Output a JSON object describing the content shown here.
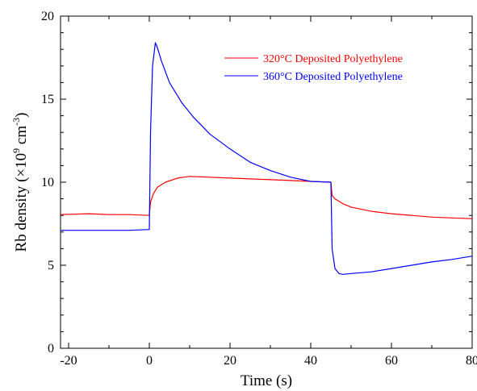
{
  "chart_data": {
    "type": "line",
    "title": "",
    "xlabel": "Time (s)",
    "ylabel": {
      "prefix": "Rb density (×10",
      "exp1": "9",
      "mid": " cm",
      "exp2": "-3",
      "suffix": ")"
    },
    "xlim": [
      -22,
      80
    ],
    "ylim": [
      0,
      20
    ],
    "xticks": [
      -20,
      0,
      20,
      40,
      60,
      80
    ],
    "xtick_labels": [
      "-20",
      "0",
      "20",
      "40",
      "60",
      "80"
    ],
    "yticks": [
      0,
      5,
      10,
      15,
      20
    ],
    "ytick_labels": [
      "0",
      "5",
      "10",
      "15",
      "20"
    ],
    "grid": false,
    "legend_position": "top-right",
    "series": [
      {
        "name": "320°C Deposited Polyethylene",
        "color": "#ff0000",
        "x": [
          -22,
          -15,
          -10,
          -5,
          0,
          0.3,
          1,
          2,
          4,
          7,
          10,
          15,
          20,
          25,
          30,
          35,
          40,
          45,
          45.3,
          46,
          48,
          50,
          55,
          60,
          65,
          70,
          75,
          80
        ],
        "y": [
          8.05,
          8.1,
          8.05,
          8.05,
          8.0,
          8.8,
          9.3,
          9.7,
          10.0,
          10.25,
          10.35,
          10.3,
          10.25,
          10.2,
          10.15,
          10.1,
          10.05,
          10.0,
          9.2,
          9.0,
          8.7,
          8.5,
          8.25,
          8.1,
          8.0,
          7.9,
          7.85,
          7.8
        ]
      },
      {
        "name": "360°C Deposited Polyethylene",
        "color": "#0000ff",
        "x": [
          -22,
          -15,
          -10,
          -5,
          0,
          0.3,
          0.8,
          1.5,
          2,
          3,
          5,
          8,
          11,
          15,
          20,
          25,
          30,
          35,
          40,
          45,
          45.3,
          46,
          47,
          48,
          50,
          55,
          60,
          65,
          70,
          75,
          80
        ],
        "y": [
          7.1,
          7.1,
          7.1,
          7.1,
          7.15,
          13.0,
          17.0,
          18.4,
          18.1,
          17.3,
          16.0,
          14.8,
          13.9,
          12.9,
          12.0,
          11.2,
          10.7,
          10.3,
          10.05,
          10.0,
          6.0,
          4.8,
          4.5,
          4.45,
          4.5,
          4.6,
          4.8,
          5.0,
          5.2,
          5.35,
          5.55
        ]
      }
    ]
  }
}
